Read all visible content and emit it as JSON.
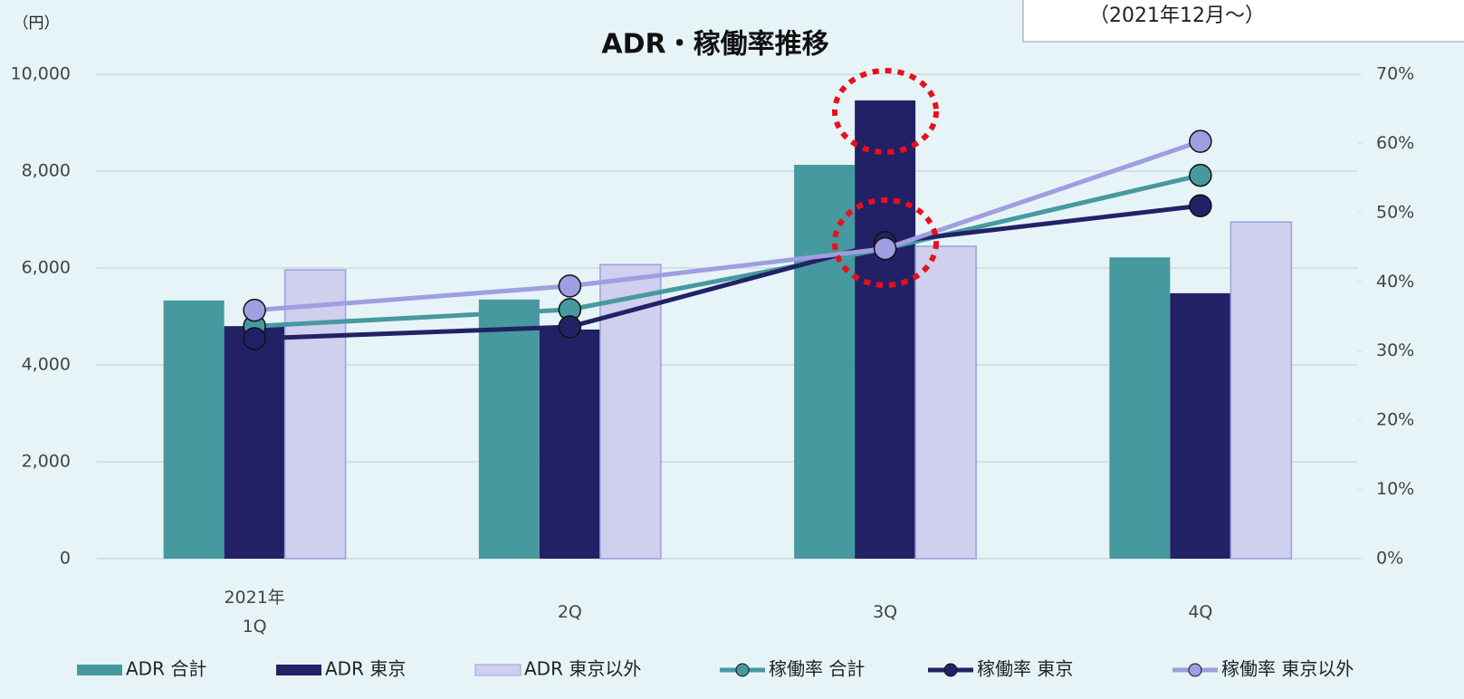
{
  "chart_data": {
    "type": "bar",
    "title": "ADR・稼働率推移",
    "unit_label": "（円）",
    "annotation": "（2021年12月～）",
    "categories": [
      "2021年\n1Q",
      "2Q",
      "3Q",
      "4Q"
    ],
    "series": [
      {
        "name": "ADR 合計",
        "type": "bar",
        "color": "#46999f",
        "values": [
          5330,
          5350,
          8130,
          6220
        ]
      },
      {
        "name": "ADR 東京",
        "type": "bar",
        "color": "#232166",
        "values": [
          4800,
          4730,
          9460,
          5480
        ]
      },
      {
        "name": "ADR 東京以外",
        "type": "bar",
        "color": "#cfcfee",
        "values": [
          5960,
          6070,
          6450,
          6950
        ]
      },
      {
        "name": "稼働率 合計",
        "type": "line",
        "axis": "y2",
        "color": "#46999f",
        "values": [
          33.6,
          36.0,
          44.8,
          55.4
        ]
      },
      {
        "name": "稼働率 東京",
        "type": "line",
        "axis": "y2",
        "color": "#232166",
        "values": [
          31.8,
          33.5,
          45.7,
          51.0
        ]
      },
      {
        "name": "稼働率 東京以外",
        "type": "line",
        "axis": "y2",
        "color": "#9e9ee0",
        "values": [
          35.9,
          39.4,
          44.8,
          60.3
        ]
      }
    ],
    "ylim": [
      0,
      10000
    ],
    "yticks": [
      0,
      {
        "value": 2000,
        "label": "2,000"
      },
      {
        "value": 4000,
        "label": "4,000"
      },
      {
        "value": 6000,
        "label": "6,000"
      },
      {
        "value": 8000,
        "label": "8,000"
      },
      {
        "value": 10000,
        "label": "10,000"
      }
    ],
    "y2lim": [
      0,
      70
    ],
    "y2ticks": [
      {
        "value": 0,
        "label": "0%"
      },
      {
        "value": 10,
        "label": "10%"
      },
      {
        "value": 20,
        "label": "20%"
      },
      {
        "value": 30,
        "label": "30%"
      },
      {
        "value": 40,
        "label": "40%"
      },
      {
        "value": 50,
        "label": "50%"
      },
      {
        "value": 60,
        "label": "60%"
      },
      {
        "value": 70,
        "label": "70%"
      }
    ],
    "grid": true
  }
}
